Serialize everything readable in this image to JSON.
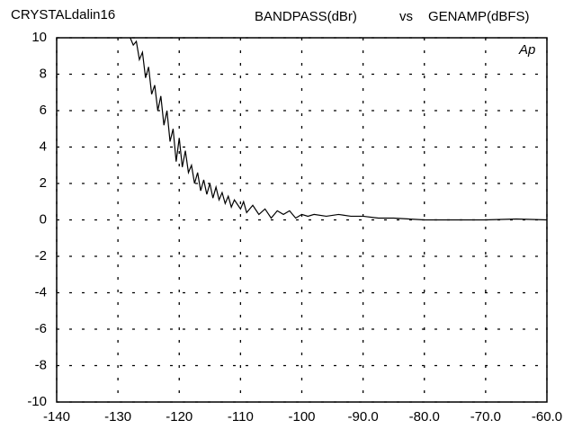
{
  "chart_data": {
    "type": "line",
    "title": "CRYSTALdalin16",
    "ylabel": "BANDPASS(dBr)",
    "vs": "vs",
    "xlabel": "GENAMP(dBFS)",
    "logo": "Ap",
    "x": [
      -128,
      -127.5,
      -127,
      -126.5,
      -126,
      -125.5,
      -125,
      -124.5,
      -124,
      -123.5,
      -123,
      -122.5,
      -122,
      -121.5,
      -121,
      -120.5,
      -120,
      -119.5,
      -119,
      -118.5,
      -118,
      -117.5,
      -117,
      -116.5,
      -116,
      -115.5,
      -115,
      -114.5,
      -114,
      -113.5,
      -113,
      -112.5,
      -112,
      -111.5,
      -111,
      -110,
      -109.5,
      -109,
      -108,
      -107,
      -106,
      -105,
      -104,
      -103,
      -102,
      -101,
      -100,
      -99,
      -98,
      -96,
      -94,
      -92,
      -90,
      -87.5,
      -85,
      -82.5,
      -80,
      -75,
      -70,
      -65,
      -60
    ],
    "series": [
      {
        "color": "#000000",
        "values": [
          10.0,
          9.6,
          9.8,
          8.8,
          9.2,
          7.8,
          8.4,
          6.9,
          7.4,
          6.0,
          6.8,
          5.2,
          6.0,
          4.3,
          5.0,
          3.2,
          4.5,
          2.9,
          3.8,
          2.6,
          3.0,
          2.0,
          2.6,
          1.6,
          2.2,
          1.4,
          2.0,
          1.2,
          1.8,
          1.1,
          1.5,
          0.9,
          1.3,
          0.7,
          1.1,
          0.6,
          1.0,
          0.4,
          0.8,
          0.3,
          0.6,
          0.1,
          0.5,
          0.3,
          0.5,
          0.1,
          0.3,
          0.2,
          0.3,
          0.2,
          0.3,
          0.2,
          0.2,
          0.1,
          0.1,
          0.05,
          0,
          0,
          0,
          0.05,
          0
        ]
      }
    ],
    "xlim": [
      -140,
      -60
    ],
    "xticks": [
      -140,
      -130,
      -120,
      -110,
      -100,
      {
        "value": -90,
        "label": "-90.0"
      },
      {
        "value": -80,
        "label": "-80.0"
      },
      {
        "value": -70,
        "label": "-70.0"
      },
      {
        "value": -60,
        "label": "-60.0"
      }
    ],
    "ylim": [
      -10,
      10
    ],
    "yticks": [
      -10,
      -8,
      -6,
      -4,
      -2,
      0,
      2,
      4,
      6,
      8,
      10
    ],
    "grid": true
  }
}
